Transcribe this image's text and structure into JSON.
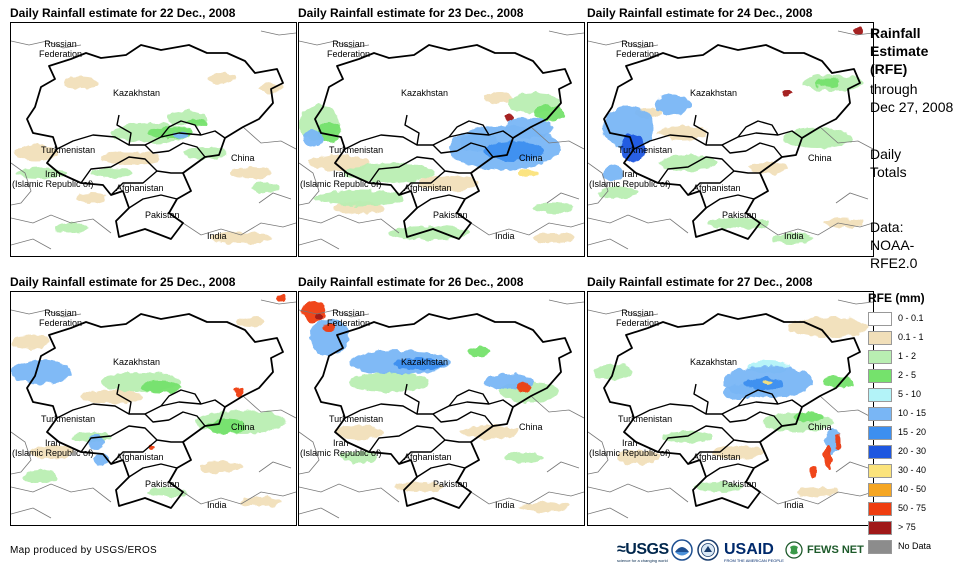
{
  "panels": [
    {
      "title": "Daily Rainfall estimate for 22 Dec., 2008",
      "rain": [
        {
          "cls": "rfe-0-1-1",
          "blobs": [
            [
              70,
              60,
              18,
              6
            ],
            [
              210,
              55,
              14,
              5
            ],
            [
              260,
              65,
              12,
              5
            ],
            [
              25,
              130,
              22,
              8
            ],
            [
              120,
              135,
              30,
              7
            ],
            [
              240,
              150,
              20,
              6
            ],
            [
              80,
              175,
              15,
              5
            ],
            [
              230,
              215,
              30,
              6
            ]
          ]
        },
        {
          "cls": "rfe-1-2",
          "blobs": [
            [
              140,
              110,
              40,
              10
            ],
            [
              175,
              95,
              20,
              7
            ],
            [
              195,
              130,
              22,
              6
            ],
            [
              30,
              150,
              25,
              5
            ],
            [
              100,
              150,
              20,
              5
            ],
            [
              255,
              165,
              14,
              6
            ],
            [
              60,
              205,
              16,
              5
            ]
          ]
        },
        {
          "cls": "rfe-2-5",
          "blobs": [
            [
              160,
              110,
              22,
              6
            ],
            [
              185,
              100,
              10,
              4
            ]
          ]
        },
        {
          "cls": "rfe-10-15",
          "blobs": [
            [
              170,
              112,
              8,
              3
            ]
          ]
        }
      ]
    },
    {
      "title": "Daily Rainfall estimate for 23 Dec., 2008",
      "rain": [
        {
          "cls": "rfe-0-1-1",
          "blobs": [
            [
              40,
              140,
              30,
              8
            ],
            [
              150,
              160,
              30,
              8
            ],
            [
              200,
              75,
              14,
              5
            ],
            [
              255,
              215,
              20,
              5
            ],
            [
              60,
              185,
              25,
              6
            ]
          ]
        },
        {
          "cls": "rfe-1-2",
          "blobs": [
            [
              20,
              100,
              20,
              18
            ],
            [
              90,
              150,
              45,
              10
            ],
            [
              60,
              175,
              45,
              8
            ],
            [
              235,
              80,
              25,
              10
            ],
            [
              130,
              210,
              40,
              7
            ],
            [
              255,
              185,
              20,
              6
            ]
          ]
        },
        {
          "cls": "rfe-2-5",
          "blobs": [
            [
              250,
              90,
              15,
              8
            ],
            [
              30,
              110,
              12,
              10
            ]
          ]
        },
        {
          "cls": "rfe-10-15",
          "blobs": [
            [
              205,
              125,
              55,
              22
            ],
            [
              230,
              105,
              25,
              10
            ],
            [
              15,
              115,
              10,
              8
            ],
            [
              180,
              120,
              20,
              10
            ]
          ]
        },
        {
          "cls": "rfe-15-20",
          "blobs": [
            [
              215,
              128,
              30,
              10
            ]
          ]
        },
        {
          "cls": "rfe-30-40",
          "blobs": [
            [
              230,
              150,
              10,
              4
            ]
          ]
        },
        {
          "cls": "rfe-75",
          "blobs": [
            [
              210,
              95,
              5,
              4
            ]
          ]
        }
      ]
    },
    {
      "title": "Daily Rainfall estimate for 24 Dec., 2008",
      "rain": [
        {
          "cls": "rfe-0-1-1",
          "blobs": [
            [
              95,
              110,
              25,
              7
            ],
            [
              180,
              145,
              20,
              6
            ],
            [
              60,
              90,
              14,
              5
            ],
            [
              255,
              200,
              20,
              5
            ]
          ]
        },
        {
          "cls": "rfe-1-2",
          "blobs": [
            [
              100,
              140,
              30,
              8
            ],
            [
              230,
              115,
              35,
              10
            ],
            [
              245,
              60,
              30,
              8
            ],
            [
              150,
              200,
              30,
              6
            ],
            [
              30,
              170,
              20,
              6
            ],
            [
              205,
              215,
              20,
              5
            ]
          ]
        },
        {
          "cls": "rfe-2-5",
          "blobs": [
            [
              240,
              60,
              12,
              5
            ]
          ]
        },
        {
          "cls": "rfe-10-15",
          "blobs": [
            [
              40,
              105,
              25,
              22
            ],
            [
              85,
              82,
              18,
              10
            ],
            [
              25,
              150,
              10,
              8
            ]
          ]
        },
        {
          "cls": "rfe-20-30",
          "blobs": [
            [
              45,
              125,
              12,
              14
            ]
          ]
        },
        {
          "cls": "rfe-75",
          "blobs": [
            [
              198,
              70,
              4,
              3
            ],
            [
              270,
              8,
              5,
              4
            ]
          ]
        }
      ]
    },
    {
      "title": "Daily Rainfall estimate for 25 Dec., 2008",
      "rain": [
        {
          "cls": "rfe-0-1-1",
          "blobs": [
            [
              20,
              50,
              18,
              7
            ],
            [
              240,
              30,
              14,
              5
            ],
            [
              100,
              105,
              30,
              7
            ],
            [
              40,
              160,
              22,
              7
            ],
            [
              210,
              175,
              22,
              6
            ],
            [
              250,
              210,
              20,
              5
            ]
          ]
        },
        {
          "cls": "rfe-1-2",
          "blobs": [
            [
              130,
              90,
              40,
              10
            ],
            [
              230,
              130,
              45,
              12
            ],
            [
              80,
              145,
              20,
              5
            ],
            [
              155,
              200,
              20,
              5
            ],
            [
              30,
              185,
              18,
              6
            ]
          ]
        },
        {
          "cls": "rfe-2-5",
          "blobs": [
            [
              150,
              95,
              20,
              6
            ],
            [
              215,
              135,
              20,
              7
            ]
          ]
        },
        {
          "cls": "rfe-10-15",
          "blobs": [
            [
              30,
              80,
              30,
              12
            ],
            [
              85,
              150,
              8,
              8
            ],
            [
              90,
              168,
              8,
              6
            ]
          ]
        },
        {
          "cls": "rfe-50-75",
          "blobs": [
            [
              228,
              100,
              4,
              5
            ],
            [
              140,
              155,
              3,
              3
            ],
            [
              270,
              6,
              5,
              4
            ]
          ]
        }
      ]
    },
    {
      "title": "Daily Rainfall estimate for 26 Dec., 2008",
      "rain": [
        {
          "cls": "rfe-0-1-1",
          "blobs": [
            [
              60,
              140,
              25,
              7
            ],
            [
              190,
              140,
              30,
              7
            ],
            [
              120,
              195,
              25,
              5
            ],
            [
              245,
              215,
              25,
              5
            ]
          ]
        },
        {
          "cls": "rfe-1-2",
          "blobs": [
            [
              90,
              90,
              40,
              10
            ],
            [
              230,
              100,
              30,
              10
            ],
            [
              60,
              165,
              18,
              6
            ],
            [
              225,
              165,
              20,
              5
            ]
          ]
        },
        {
          "cls": "rfe-2-5",
          "blobs": [
            [
              180,
              60,
              12,
              5
            ]
          ]
        },
        {
          "cls": "rfe-10-15",
          "blobs": [
            [
              100,
              70,
              50,
              12
            ],
            [
              30,
              45,
              20,
              18
            ],
            [
              210,
              90,
              25,
              8
            ]
          ]
        },
        {
          "cls": "rfe-15-20",
          "blobs": [
            [
              120,
              72,
              25,
              6
            ]
          ]
        },
        {
          "cls": "rfe-50-75",
          "blobs": [
            [
              15,
              20,
              12,
              10
            ],
            [
              30,
              35,
              6,
              4
            ],
            [
              225,
              95,
              6,
              5
            ]
          ]
        },
        {
          "cls": "rfe-75",
          "blobs": [
            [
              20,
              25,
              4,
              3
            ]
          ]
        }
      ]
    },
    {
      "title": "Daily Rainfall estimate for 27 Dec., 2008",
      "rain": [
        {
          "cls": "rfe-0-1-1",
          "blobs": [
            [
              240,
              35,
              40,
              10
            ],
            [
              150,
              160,
              25,
              7
            ],
            [
              50,
              165,
              22,
              7
            ],
            [
              230,
              200,
              20,
              5
            ]
          ]
        },
        {
          "cls": "rfe-1-2",
          "blobs": [
            [
              25,
              80,
              20,
              8
            ],
            [
              210,
              130,
              35,
              10
            ],
            [
              100,
              145,
              25,
              6
            ],
            [
              130,
              195,
              25,
              5
            ]
          ]
        },
        {
          "cls": "rfe-2-5",
          "blobs": [
            [
              220,
              125,
              15,
              6
            ],
            [
              250,
              90,
              15,
              6
            ]
          ]
        },
        {
          "cls": "rfe-5-10",
          "blobs": [
            [
              180,
              75,
              20,
              6
            ]
          ]
        },
        {
          "cls": "rfe-10-15",
          "blobs": [
            [
              180,
              90,
              45,
              16
            ],
            [
              150,
              100,
              15,
              8
            ],
            [
              245,
              150,
              8,
              12
            ]
          ]
        },
        {
          "cls": "rfe-15-20",
          "blobs": [
            [
              175,
              92,
              20,
              6
            ]
          ]
        },
        {
          "cls": "rfe-30-40",
          "blobs": [
            [
              180,
              91,
              5,
              2
            ]
          ]
        },
        {
          "cls": "rfe-50-75",
          "blobs": [
            [
              240,
              165,
              4,
              12
            ],
            [
              250,
              150,
              3,
              8
            ],
            [
              225,
              180,
              3,
              6
            ]
          ]
        }
      ]
    }
  ],
  "map_labels": {
    "russia": [
      "Russian",
      "Federation"
    ],
    "kazakhstan": "Kazakhstan",
    "turkmenistan": "Turkmenistan",
    "iran": [
      "Iran",
      "(Islamic Republic of)"
    ],
    "afghanistan": "Afghanistan",
    "pakistan": "Pakistan",
    "china": "China",
    "india": "India"
  },
  "side": {
    "title_lines": [
      "Rainfall",
      "Estimate",
      "(RFE)"
    ],
    "through_lines": [
      "through",
      "Dec 27, 2008"
    ],
    "totals_lines": [
      "Daily",
      "Totals"
    ],
    "data_lines": [
      "Data:",
      "NOAA-",
      "RFE2.0"
    ]
  },
  "legend": {
    "title": "RFE (mm)",
    "items": [
      {
        "label": "0 - 0.1",
        "color": "#ffffff",
        "cls": "rfe-0-0-1"
      },
      {
        "label": "0.1 - 1",
        "color": "#f1dfb9",
        "cls": "rfe-0-1-1"
      },
      {
        "label": "1 - 2",
        "color": "#b9eeb2",
        "cls": "rfe-1-2"
      },
      {
        "label": "2 - 5",
        "color": "#75e26c",
        "cls": "rfe-2-5"
      },
      {
        "label": "5 - 10",
        "color": "#b3f3f8",
        "cls": "rfe-5-10"
      },
      {
        "label": "10 - 15",
        "color": "#79b6f5",
        "cls": "rfe-10-15"
      },
      {
        "label": "15 - 20",
        "color": "#3d8ff0",
        "cls": "rfe-15-20"
      },
      {
        "label": "20 - 30",
        "color": "#1e57e0",
        "cls": "rfe-20-30"
      },
      {
        "label": "30 - 40",
        "color": "#fbe37b",
        "cls": "rfe-30-40"
      },
      {
        "label": "40 - 50",
        "color": "#f5a623",
        "cls": "rfe-40-50"
      },
      {
        "label": "50 - 75",
        "color": "#ef3d10",
        "cls": "rfe-50-75"
      },
      {
        "label": "> 75",
        "color": "#a01818",
        "cls": "rfe-75"
      },
      {
        "label": "No Data",
        "color": "#8c8c8c",
        "cls": "rfe-nodata"
      }
    ]
  },
  "credit": "Map produced by USGS/EROS",
  "logos": {
    "usgs": "≈USGS",
    "usgs_tagline": "science for a changing world",
    "usaid": "USAID",
    "usaid_tagline": "FROM THE AMERICAN PEOPLE",
    "fews": "FEWS NET"
  }
}
